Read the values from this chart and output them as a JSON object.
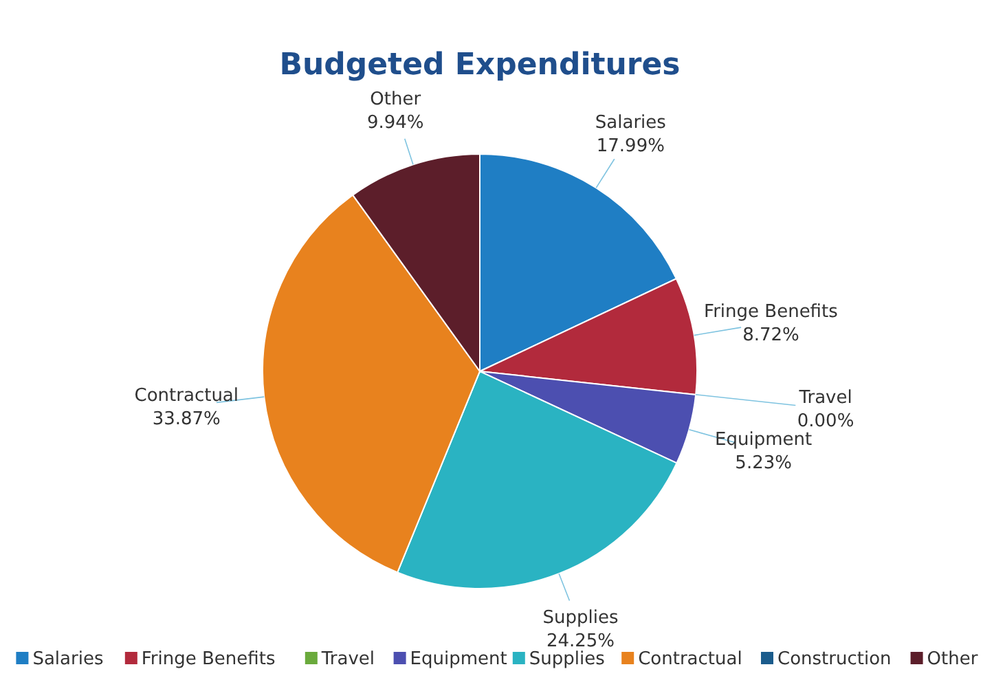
{
  "chart_data": {
    "type": "pie",
    "title": "Budgeted Expenditures",
    "categories": [
      "Salaries",
      "Fringe Benefits",
      "Travel",
      "Equipment",
      "Supplies",
      "Contractual",
      "Construction",
      "Other"
    ],
    "values": [
      17.99,
      8.72,
      0.0,
      5.23,
      24.25,
      33.87,
      0,
      9.94
    ],
    "value_labels": [
      "17.99%",
      "8.72%",
      "0.00%",
      "5.23%",
      "24.25%",
      "33.87%",
      null,
      "9.94%"
    ],
    "colors": [
      "#1f7ec4",
      "#b22a3c",
      "#6aaa3c",
      "#4c4fb0",
      "#2ab3c2",
      "#e8821e",
      "#1b5c8c",
      "#5c1e2a"
    ],
    "legend": "bottom"
  }
}
